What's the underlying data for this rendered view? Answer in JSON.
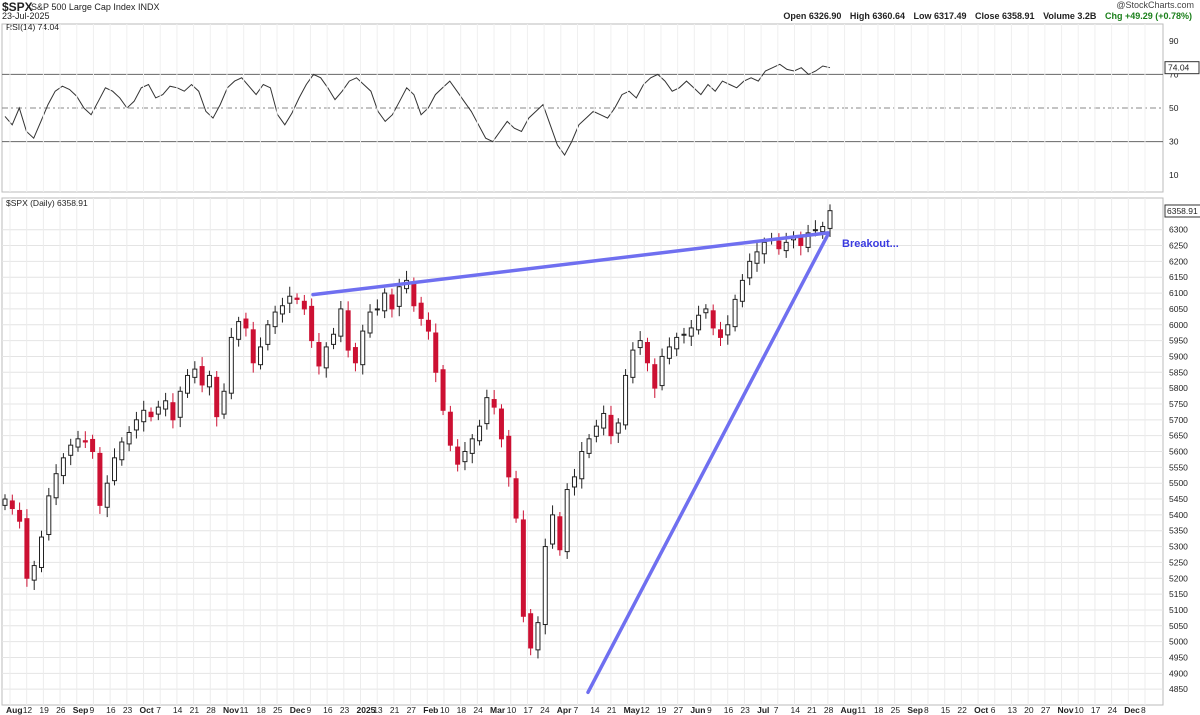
{
  "header": {
    "ticker": "$SPX",
    "name": "S&P 500 Large Cap Index",
    "exchange": "INDX",
    "date": "23-Jul-2025",
    "copyright": "@StockCharts.com",
    "open": "Open 6326.90",
    "high": "High 6360.64",
    "low": "Low 6317.49",
    "close": "Close 6358.91",
    "volume": "Volume 3.2B",
    "chg": "Chg +49.29 (+0.78%)"
  },
  "colors": {
    "up": "#222222",
    "down": "#cc1133",
    "trendline": "#6f6ff0",
    "rsi": "#333333",
    "annotation": "#3a3ae0"
  },
  "chart_data": [
    {
      "type": "line",
      "panel": "rsi",
      "label": "RSI(14) 74.04",
      "last_value_label": "74.04",
      "ylim": [
        0,
        100
      ],
      "yticks": [
        10,
        30,
        50,
        70,
        90
      ],
      "reference_lines": [
        30,
        50,
        70
      ],
      "values": [
        45,
        40,
        50,
        36,
        32,
        42,
        52,
        60,
        63,
        61,
        57,
        50,
        46,
        54,
        62,
        60,
        56,
        50,
        54,
        62,
        64,
        56,
        58,
        63,
        62,
        60,
        64,
        60,
        48,
        44,
        52,
        62,
        66,
        68,
        63,
        58,
        64,
        62,
        46,
        40,
        47,
        56,
        64,
        70,
        68,
        62,
        55,
        60,
        66,
        68,
        64,
        60,
        48,
        42,
        46,
        54,
        62,
        58,
        46,
        50,
        58,
        62,
        66,
        60,
        54,
        48,
        40,
        32,
        30,
        36,
        42,
        38,
        36,
        44,
        48,
        52,
        40,
        28,
        22,
        30,
        40,
        44,
        48,
        46,
        44,
        50,
        58,
        60,
        56,
        64,
        68,
        70,
        66,
        60,
        62,
        66,
        62,
        58,
        64,
        60,
        66,
        64,
        62,
        66,
        68,
        66,
        72,
        74,
        76,
        73,
        72,
        74,
        70,
        72,
        75,
        74
      ]
    },
    {
      "type": "candlestick",
      "panel": "price",
      "label": "$SPX (Daily) 6358.91",
      "last_value_label": "6358.91",
      "ylim": [
        4800,
        6400
      ],
      "yticks": [
        4850,
        4900,
        4950,
        5000,
        5050,
        5100,
        5150,
        5200,
        5250,
        5300,
        5350,
        5400,
        5450,
        5500,
        5550,
        5600,
        5650,
        5700,
        5750,
        5800,
        5850,
        5900,
        5950,
        6000,
        6050,
        6100,
        6150,
        6200,
        6250,
        6300
      ],
      "x_tick_labels": [
        "Aug",
        "12",
        "19",
        "26",
        "Sep",
        "9",
        "16",
        "23",
        "Oct",
        "7",
        "14",
        "21",
        "28",
        "Nov",
        "11",
        "18",
        "25",
        "Dec",
        "9",
        "16",
        "23",
        "2025",
        "13",
        "21",
        "27",
        "Feb",
        "10",
        "18",
        "24",
        "Mar",
        "10",
        "17",
        "24",
        "Apr",
        "7",
        "14",
        "21",
        "May",
        "12",
        "19",
        "27",
        "Jun",
        "9",
        "16",
        "23",
        "Jul",
        "7",
        "14",
        "21",
        "28",
        "Aug",
        "11",
        "18",
        "25",
        "Sep",
        "8",
        "15",
        "22",
        "Oct",
        "6",
        "13",
        "20",
        "27",
        "Nov",
        "10",
        "17",
        "24",
        "Dec",
        "8"
      ],
      "closes": [
        5450,
        5420,
        5380,
        5200,
        5240,
        5330,
        5460,
        5530,
        5580,
        5620,
        5640,
        5630,
        5600,
        5430,
        5500,
        5580,
        5630,
        5660,
        5700,
        5730,
        5710,
        5740,
        5760,
        5700,
        5790,
        5840,
        5860,
        5810,
        5840,
        5710,
        5790,
        5960,
        6010,
        5990,
        5880,
        5930,
        6000,
        6040,
        6060,
        6090,
        6080,
        6050,
        5950,
        5870,
        5930,
        5970,
        6050,
        5920,
        5880,
        5980,
        6040,
        6050,
        6100,
        6050,
        6120,
        6140,
        6060,
        6020,
        5980,
        5850,
        5730,
        5620,
        5560,
        5600,
        5640,
        5680,
        5770,
        5740,
        5640,
        5520,
        5390,
        5080,
        4980,
        5060,
        5300,
        5400,
        5290,
        5480,
        5520,
        5600,
        5640,
        5680,
        5720,
        5650,
        5690,
        5840,
        5920,
        5950,
        5880,
        5800,
        5900,
        5930,
        5960,
        5970,
        5990,
        6030,
        6050,
        5990,
        5960,
        6000,
        6080,
        6140,
        6200,
        6230,
        6260,
        6270,
        6240,
        6260,
        6280,
        6250,
        6290,
        6300,
        6310,
        6360
      ]
    }
  ],
  "annotations": {
    "breakout": "Breakout..."
  }
}
